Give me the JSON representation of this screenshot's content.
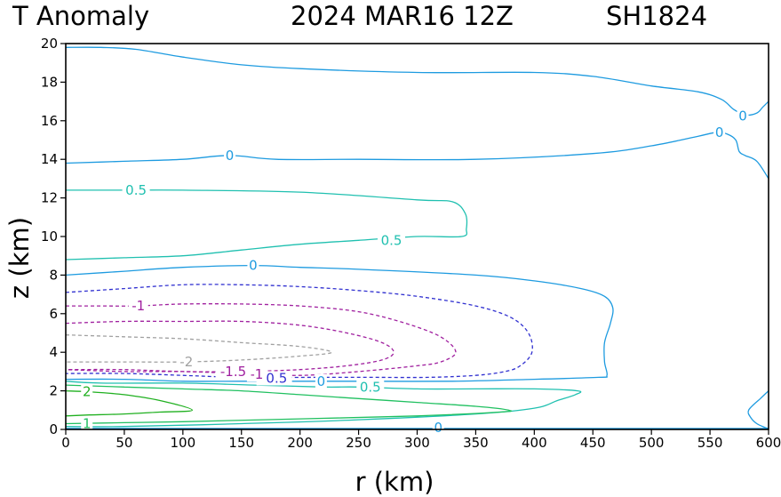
{
  "chart_data": {
    "type": "contour",
    "title": {
      "variable": "T Anomaly",
      "datetime": "2024 MAR16 12Z",
      "storm": "SH1824"
    },
    "xlabel": "r (km)",
    "ylabel": "z (km)",
    "xlim": [
      0,
      600
    ],
    "ylim": [
      0,
      20
    ],
    "xticks": [
      0,
      50,
      100,
      150,
      200,
      250,
      300,
      350,
      400,
      450,
      500,
      550,
      600
    ],
    "yticks": [
      0,
      2,
      4,
      6,
      8,
      10,
      12,
      14,
      16,
      18,
      20
    ],
    "contour_levels": [
      {
        "level": -2,
        "color": "#a0a0a0",
        "dashed": true
      },
      {
        "level": -1.5,
        "color": "#a0209f",
        "dashed": true
      },
      {
        "level": -1,
        "color": "#a0209f",
        "dashed": true
      },
      {
        "level": -0.5,
        "color": "#3030d0",
        "dashed": true
      },
      {
        "level": 0,
        "color": "#1e9be0",
        "dashed": false
      },
      {
        "level": 0.5,
        "color": "#20c0b0",
        "dashed": false
      },
      {
        "level": 1,
        "color": "#20c060",
        "dashed": false
      },
      {
        "level": 2,
        "color": "#20b020",
        "dashed": false
      }
    ],
    "contours": [
      {
        "level": 0,
        "color": "#1e9be0",
        "dashed": false,
        "points": [
          [
            0,
            19.8
          ],
          [
            30,
            19.8
          ],
          [
            60,
            19.7
          ],
          [
            100,
            19.3
          ],
          [
            150,
            18.9
          ],
          [
            200,
            18.7
          ],
          [
            300,
            18.5
          ],
          [
            400,
            18.5
          ],
          [
            450,
            18.3
          ],
          [
            500,
            17.8
          ],
          [
            540,
            17.5
          ],
          [
            560,
            17.1
          ],
          [
            570,
            16.6
          ],
          [
            580,
            16.3
          ],
          [
            590,
            16.4
          ],
          [
            595,
            16.7
          ],
          [
            600,
            17.0
          ]
        ],
        "labels": [
          {
            "text": "0",
            "x": 578,
            "y": 16.25
          }
        ]
      },
      {
        "level": 0,
        "color": "#1e9be0",
        "dashed": false,
        "points": [
          [
            0,
            13.8
          ],
          [
            50,
            13.9
          ],
          [
            100,
            14.0
          ],
          [
            140,
            14.2
          ],
          [
            180,
            14.0
          ],
          [
            250,
            14.0
          ],
          [
            350,
            14.0
          ],
          [
            450,
            14.3
          ],
          [
            500,
            14.7
          ],
          [
            540,
            15.2
          ],
          [
            556,
            15.4
          ],
          [
            565,
            15.3
          ],
          [
            572,
            15.0
          ],
          [
            575,
            14.4
          ],
          [
            580,
            14.2
          ],
          [
            590,
            13.9
          ],
          [
            600,
            13.0
          ]
        ],
        "labels": [
          {
            "text": "0",
            "x": 140,
            "y": 14.2
          },
          {
            "text": "0",
            "x": 558,
            "y": 15.4
          }
        ]
      },
      {
        "level": 0.5,
        "color": "#20c0b0",
        "dashed": false,
        "points": [
          [
            0,
            12.4
          ],
          [
            50,
            12.4
          ],
          [
            100,
            12.4
          ],
          [
            200,
            12.3
          ],
          [
            300,
            11.9
          ],
          [
            330,
            11.8
          ],
          [
            341,
            11.2
          ],
          [
            342,
            10.4
          ],
          [
            338,
            10.0
          ],
          [
            300,
            10.0
          ],
          [
            250,
            9.8
          ],
          [
            200,
            9.6
          ],
          [
            150,
            9.3
          ],
          [
            100,
            9.0
          ],
          [
            50,
            8.9
          ],
          [
            0,
            8.8
          ]
        ],
        "labels": [
          {
            "text": "0.5",
            "x": 60,
            "y": 12.4
          },
          {
            "text": "0.5",
            "x": 278,
            "y": 9.8
          }
        ]
      },
      {
        "level": 0,
        "color": "#1e9be0",
        "dashed": false,
        "points": [
          [
            0,
            8.0
          ],
          [
            50,
            8.2
          ],
          [
            100,
            8.4
          ],
          [
            160,
            8.5
          ],
          [
            200,
            8.4
          ],
          [
            250,
            8.3
          ],
          [
            350,
            8.0
          ],
          [
            400,
            7.7
          ],
          [
            440,
            7.3
          ],
          [
            460,
            6.9
          ],
          [
            467,
            6.3
          ],
          [
            465,
            5.5
          ],
          [
            460,
            4.5
          ],
          [
            460,
            3.5
          ],
          [
            462,
            2.8
          ],
          [
            455,
            2.7
          ],
          [
            400,
            2.6
          ],
          [
            330,
            2.5
          ],
          [
            250,
            2.5
          ],
          [
            200,
            2.5
          ],
          [
            150,
            2.5
          ],
          [
            100,
            2.5
          ],
          [
            50,
            2.6
          ],
          [
            0,
            2.6
          ]
        ],
        "labels": [
          {
            "text": "0",
            "x": 160,
            "y": 8.5
          },
          {
            "text": "0",
            "x": 218,
            "y": 2.5
          }
        ]
      },
      {
        "level": -0.5,
        "color": "#3030d0",
        "dashed": true,
        "points": [
          [
            0,
            7.1
          ],
          [
            50,
            7.3
          ],
          [
            100,
            7.5
          ],
          [
            150,
            7.5
          ],
          [
            200,
            7.4
          ],
          [
            250,
            7.2
          ],
          [
            300,
            6.9
          ],
          [
            350,
            6.4
          ],
          [
            380,
            5.8
          ],
          [
            395,
            5.0
          ],
          [
            398,
            4.0
          ],
          [
            388,
            3.3
          ],
          [
            375,
            3.0
          ],
          [
            350,
            2.8
          ],
          [
            310,
            2.7
          ],
          [
            260,
            2.7
          ],
          [
            220,
            2.7
          ],
          [
            150,
            2.7
          ],
          [
            100,
            2.8
          ],
          [
            50,
            2.9
          ],
          [
            0,
            2.9
          ]
        ],
        "labels": [
          {
            "text": "-0.5",
            "x": 178,
            "y": 2.65
          }
        ]
      },
      {
        "level": -1,
        "color": "#a0209f",
        "dashed": true,
        "points": [
          [
            0,
            6.4
          ],
          [
            30,
            6.4
          ],
          [
            60,
            6.4
          ],
          [
            100,
            6.5
          ],
          [
            150,
            6.5
          ],
          [
            200,
            6.4
          ],
          [
            250,
            6.1
          ],
          [
            290,
            5.5
          ],
          [
            320,
            4.8
          ],
          [
            333,
            4.0
          ],
          [
            320,
            3.5
          ],
          [
            300,
            3.3
          ],
          [
            250,
            3.0
          ],
          [
            200,
            2.8
          ],
          [
            150,
            2.9
          ],
          [
            100,
            3.0
          ],
          [
            50,
            3.0
          ],
          [
            0,
            3.1
          ]
        ],
        "labels": [
          {
            "text": "-1",
            "x": 62,
            "y": 6.4
          },
          {
            "text": "-1",
            "x": 163,
            "y": 2.85
          }
        ]
      },
      {
        "level": -1.5,
        "color": "#a0209f",
        "dashed": true,
        "points": [
          [
            0,
            5.5
          ],
          [
            50,
            5.6
          ],
          [
            100,
            5.6
          ],
          [
            150,
            5.6
          ],
          [
            200,
            5.4
          ],
          [
            240,
            5.0
          ],
          [
            270,
            4.5
          ],
          [
            280,
            4.0
          ],
          [
            270,
            3.6
          ],
          [
            240,
            3.3
          ],
          [
            200,
            3.1
          ],
          [
            150,
            3.0
          ],
          [
            100,
            3.0
          ],
          [
            50,
            3.1
          ],
          [
            0,
            3.1
          ]
        ],
        "labels": [
          {
            "text": "-1.5",
            "x": 143,
            "y": 3.0
          }
        ]
      },
      {
        "level": -2,
        "color": "#a0a0a0",
        "dashed": true,
        "points": [
          [
            0,
            4.9
          ],
          [
            50,
            4.8
          ],
          [
            100,
            4.7
          ],
          [
            150,
            4.5
          ],
          [
            200,
            4.3
          ],
          [
            227,
            4.0
          ],
          [
            200,
            3.8
          ],
          [
            150,
            3.6
          ],
          [
            100,
            3.5
          ],
          [
            50,
            3.5
          ],
          [
            0,
            3.5
          ]
        ],
        "labels": [
          {
            "text": "-2",
            "x": 103,
            "y": 3.5
          }
        ]
      },
      {
        "level": 0.5,
        "color": "#20c0b0",
        "dashed": false,
        "points": [
          [
            0,
            2.5
          ],
          [
            30,
            2.4
          ],
          [
            100,
            2.4
          ],
          [
            160,
            2.3
          ],
          [
            220,
            2.2
          ],
          [
            250,
            2.2
          ],
          [
            300,
            2.1
          ],
          [
            350,
            2.1
          ],
          [
            400,
            2.1
          ],
          [
            437,
            2.0
          ],
          [
            435,
            1.8
          ],
          [
            420,
            1.5
          ],
          [
            400,
            1.1
          ],
          [
            350,
            0.8
          ],
          [
            250,
            0.5
          ],
          [
            150,
            0.3
          ],
          [
            50,
            0.15
          ],
          [
            0,
            0.15
          ]
        ],
        "labels": [
          {
            "text": "0.5",
            "x": 260,
            "y": 2.2
          }
        ]
      },
      {
        "level": 1,
        "color": "#20c060",
        "dashed": false,
        "points": [
          [
            0,
            2.3
          ],
          [
            50,
            2.2
          ],
          [
            100,
            2.1
          ],
          [
            150,
            2.0
          ],
          [
            200,
            1.8
          ],
          [
            250,
            1.6
          ],
          [
            300,
            1.4
          ],
          [
            350,
            1.2
          ],
          [
            378,
            1.0
          ],
          [
            370,
            0.9
          ],
          [
            300,
            0.7
          ],
          [
            200,
            0.55
          ],
          [
            100,
            0.4
          ],
          [
            50,
            0.35
          ],
          [
            0,
            0.3
          ]
        ],
        "labels": [
          {
            "text": "1",
            "x": 18,
            "y": 0.3
          }
        ]
      },
      {
        "level": 2,
        "color": "#20b020",
        "dashed": false,
        "points": [
          [
            0,
            2.0
          ],
          [
            20,
            1.95
          ],
          [
            50,
            1.8
          ],
          [
            80,
            1.5
          ],
          [
            108,
            1.0
          ],
          [
            80,
            0.9
          ],
          [
            50,
            0.8
          ],
          [
            20,
            0.75
          ],
          [
            0,
            0.7
          ]
        ],
        "labels": [
          {
            "text": "2",
            "x": 18,
            "y": 1.95
          }
        ]
      },
      {
        "level": 0,
        "color": "#1e9be0",
        "dashed": false,
        "points": [
          [
            0,
            0.05
          ],
          [
            100,
            0.05
          ],
          [
            200,
            0.05
          ],
          [
            300,
            0.05
          ],
          [
            400,
            0.05
          ],
          [
            500,
            0.05
          ],
          [
            600,
            0.05
          ]
        ],
        "labels": [
          {
            "text": "0",
            "x": 318,
            "y": 0.1
          }
        ]
      },
      {
        "level": 0,
        "color": "#1e9be0",
        "dashed": false,
        "points": [
          [
            600,
            2.0
          ],
          [
            593,
            1.6
          ],
          [
            583,
            1.0
          ],
          [
            585,
            0.6
          ],
          [
            590,
            0.3
          ],
          [
            597,
            0.1
          ],
          [
            600,
            0.05
          ]
        ],
        "labels": []
      }
    ]
  }
}
